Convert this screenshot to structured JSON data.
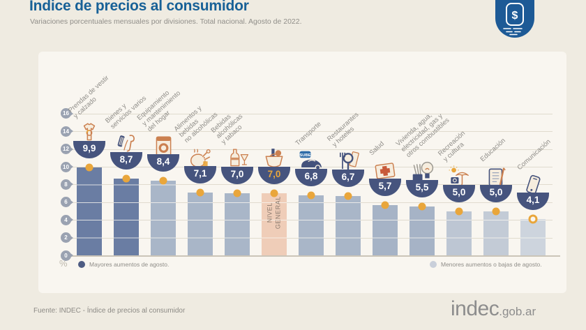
{
  "header": {
    "title": "Indice de precios al consumidor",
    "subtitle": "Variaciones porcentuales mensuales por divisiones. Total nacional. Agosto de 2022.",
    "badge_symbol": "$"
  },
  "chart_data": {
    "type": "bar",
    "title": "Indice de precios al consumidor",
    "subtitle": "Variaciones porcentuales mensuales por divisiones. Total nacional. Agosto de 2022.",
    "unit": "%",
    "ylabel": "%",
    "ylim": [
      0,
      16
    ],
    "yticks": [
      0,
      2,
      4,
      6,
      8,
      10,
      12,
      14,
      16
    ],
    "grid": true,
    "legend_position": "bottom",
    "legend": [
      {
        "id": "mayores",
        "label": "Mayores aumentos de agosto.",
        "color": "#4E5C83"
      },
      {
        "id": "menores",
        "label": "Menores aumentos o bajas de agosto.",
        "color": "#C9CFDA"
      }
    ],
    "categories": [
      "Prendas de vestir y calzado",
      "Bienes y servicios varios",
      "Equipamiento y mantenimiento del hogar",
      "Alimentos y bebidas no alcohólicas",
      "Bebidas alcohólicas y tabaco",
      "Nivel general",
      "Transporte",
      "Restaurantes y hoteles",
      "Salud",
      "Vivienda, agua, electricidad, gas y otros combustibles",
      "Recreación y cultura",
      "Educación",
      "Comunicación"
    ],
    "values": [
      9.9,
      8.7,
      8.4,
      7.1,
      7.0,
      7.0,
      6.8,
      6.7,
      5.7,
      5.5,
      5.0,
      5.0,
      4.1
    ],
    "display_values": [
      "9,9",
      "8,7",
      "8,4",
      "7,1",
      "7,0",
      "7,0",
      "6,8",
      "6,7",
      "5,7",
      "5,5",
      "5,0",
      "5,0",
      "4,1"
    ],
    "bars": [
      {
        "category": "Prendas de vestir y calzado",
        "label_lines": [
          "Prendas de vestir",
          "y calzado"
        ],
        "value": 9.9,
        "display_value": "9,9",
        "group": "mayores",
        "color": "#6A7DA3",
        "icon": "tshirt-icon"
      },
      {
        "category": "Bienes y servicios varios",
        "label_lines": [
          "Bienes y",
          "servicios varios"
        ],
        "value": 8.7,
        "display_value": "8,7",
        "group": "mayores",
        "color": "#6A7DA3",
        "icon": "grooming-icon"
      },
      {
        "category": "Equipamiento y mantenimiento del hogar",
        "label_lines": [
          "Equipamiento",
          "y mantenimiento",
          "del hogar"
        ],
        "value": 8.4,
        "display_value": "8,4",
        "group": "menores",
        "color": "#A9B6C8",
        "icon": "washing-machine-icon"
      },
      {
        "category": "Alimentos y bebidas no alcohólicas",
        "label_lines": [
          "Alimentos y",
          "bebidas",
          "no alcohólicas"
        ],
        "value": 7.1,
        "display_value": "7,1",
        "group": "menores",
        "color": "#A9B6C8",
        "icon": "food-icon"
      },
      {
        "category": "Bebidas alcohólicas y tabaco",
        "label_lines": [
          "Bebidas",
          "alcohólicas",
          "y tabaco"
        ],
        "value": 7.0,
        "display_value": "7,0",
        "group": "menores",
        "color": "#A9B6C8",
        "icon": "drinks-tobacco-icon"
      },
      {
        "category": "Nivel general",
        "label_lines": [],
        "in_bar_label": [
          "NIVEL",
          "GENERAL"
        ],
        "value": 7.0,
        "display_value": "7,0",
        "group": "nivel-general",
        "color": "#EFCDB8",
        "value_color": "#E9A63B",
        "icon": "shopping-basket-icon"
      },
      {
        "category": "Transporte",
        "label_lines": [
          "Transporte"
        ],
        "value": 6.8,
        "display_value": "6,8",
        "group": "menores",
        "color": "#A9B6C8",
        "icon": "car-sube-icon",
        "icon_text": "SUBE"
      },
      {
        "category": "Restaurantes y hoteles",
        "label_lines": [
          "Restaurantes",
          "y hoteles"
        ],
        "value": 6.7,
        "display_value": "6,7",
        "group": "menores",
        "color": "#A9B6C8",
        "icon": "cutlery-icon"
      },
      {
        "category": "Salud",
        "label_lines": [
          "Salud"
        ],
        "value": 5.7,
        "display_value": "5,7",
        "group": "menores",
        "color": "#A6B3C6",
        "icon": "first-aid-icon"
      },
      {
        "category": "Vivienda, agua, electricidad, gas y otros combustibles",
        "label_lines": [
          "Vivienda, agua,",
          "electricidad, gas y",
          "otros combustibles"
        ],
        "value": 5.5,
        "display_value": "5,5",
        "group": "menores",
        "color": "#A6B3C6",
        "icon": "lightbulb-icon"
      },
      {
        "category": "Recreación y cultura",
        "label_lines": [
          "Recreación",
          "y cultura"
        ],
        "value": 5.0,
        "display_value": "5,0",
        "group": "menores",
        "color": "#BDC6D3",
        "icon": "umbrella-icon"
      },
      {
        "category": "Educación",
        "label_lines": [
          "Educación"
        ],
        "value": 5.0,
        "display_value": "5,0",
        "group": "menores",
        "color": "#C3CBD6",
        "icon": "notebook-pencil-icon"
      },
      {
        "category": "Comunicación",
        "label_lines": [
          "Comunicación"
        ],
        "value": 4.1,
        "display_value": "4,1",
        "group": "menores",
        "color": "#CDD4DD",
        "icon": "smartphone-icon",
        "dot_style": "ring"
      }
    ]
  },
  "footer": {
    "source": "Fuente: INDEC - Índice de precios al consumidor",
    "logo_main": "indec",
    "logo_suffix": ".gob.ar"
  }
}
